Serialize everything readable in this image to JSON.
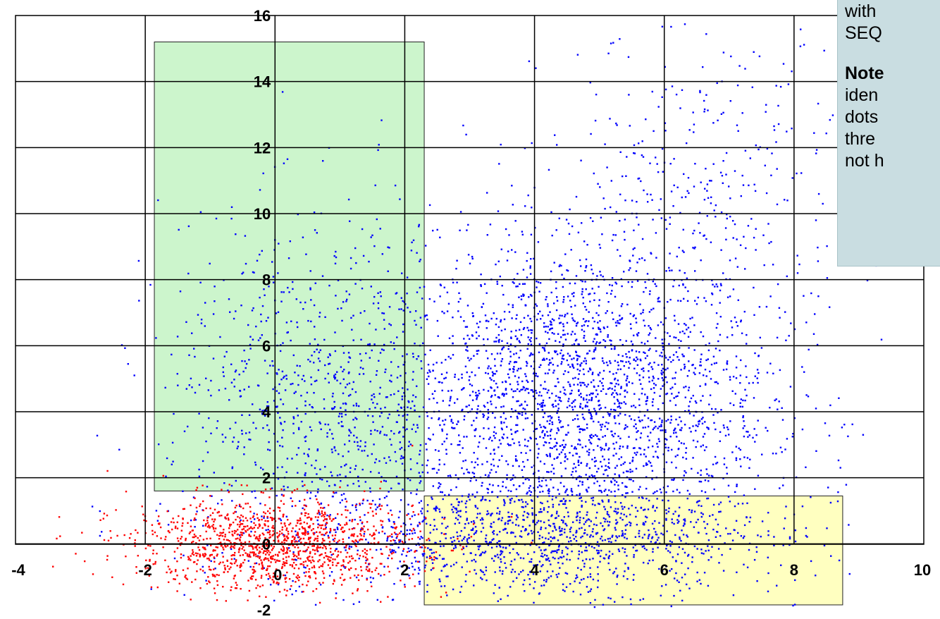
{
  "chart_data": {
    "type": "scatter",
    "title": "",
    "xlabel": "",
    "ylabel": "",
    "xlim": [
      -4,
      10
    ],
    "ylim": [
      -2,
      16
    ],
    "x_ticks": [
      "-4",
      "-2",
      "0",
      "2",
      "4",
      "6",
      "8",
      "10"
    ],
    "y_ticks": [
      "-2",
      "0",
      "2",
      "4",
      "6",
      "8",
      "10",
      "12",
      "14",
      "16"
    ],
    "grid": true,
    "series": [
      {
        "color": "#ff0000",
        "clusters": [
          {
            "cx": 0.0,
            "cy": 0.0,
            "sx": 1.1,
            "sy": 0.7,
            "n": 1300
          }
        ]
      },
      {
        "color": "#0000ff",
        "clusters": [
          {
            "cx": 4.6,
            "cy": 4.3,
            "sx": 1.5,
            "sy": 2.4,
            "n": 2600
          },
          {
            "cx": 0.6,
            "cy": 3.8,
            "sx": 1.2,
            "sy": 3.0,
            "n": 900
          },
          {
            "cx": 4.2,
            "cy": 0.2,
            "sx": 1.8,
            "sy": 0.8,
            "n": 1000
          },
          {
            "cx": 6.5,
            "cy": 10.5,
            "sx": 1.2,
            "sy": 2.5,
            "n": 350
          }
        ]
      }
    ],
    "highlight_regions": [
      {
        "x": [
          -1.86,
          2.3
        ],
        "y": [
          1.6,
          15.2
        ],
        "color": "#ccf5cc"
      },
      {
        "x": [
          2.3,
          8.75
        ],
        "y": [
          -1.85,
          1.45
        ],
        "color": "#ffffc0"
      }
    ]
  },
  "note": {
    "line1": "with",
    "line2": "SEQ",
    "bold": "Note",
    "line3": "iden",
    "line4": "dots",
    "line5": "thre",
    "line6": "not h"
  }
}
